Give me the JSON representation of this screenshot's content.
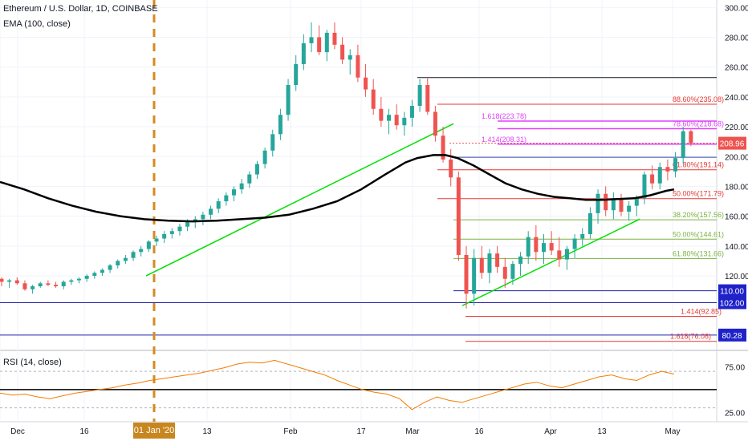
{
  "header": {
    "title": "Ethereum / U.S. Dollar, 1D, COINBASE",
    "ema_label": "EMA (100, close)",
    "rsi_label": "RSI (14, close)"
  },
  "colors": {
    "up": "#26a69a",
    "down": "#ef5350",
    "ema": "#000000",
    "trendline": "#00e000",
    "fib_red": "#e53935",
    "fib_magenta": "#e040fb",
    "fib_green": "#7cb342",
    "support_blue": "#1e22aa",
    "rsi_line": "#f57c00",
    "vertical_marker": "#d68a1f",
    "current_price_badge": "#ef5350",
    "level_badge": "#1e22c8"
  },
  "chart_data": {
    "type": "candlestick",
    "symbol": "Ethereum / U.S. Dollar",
    "interval": "1D",
    "exchange": "COINBASE",
    "ylim": [
      70,
      305
    ],
    "y_ticks": [
      120,
      140,
      160,
      180,
      200,
      220,
      240,
      260,
      280,
      300
    ],
    "x_ticks": [
      "Dec",
      "16",
      "01 Jan '20",
      "13",
      "Feb",
      "17",
      "Mar",
      "16",
      "Apr",
      "13",
      "May"
    ],
    "highlighted_x_tick": "01 Jan '20",
    "current_price": "208.96",
    "price_badges": [
      "110.00",
      "102.00",
      "80.28"
    ],
    "fib_levels": [
      {
        "label": "88.60%(235.08)",
        "price": 235.08,
        "color": "red"
      },
      {
        "label": "78.60%(218.68)",
        "price": 218.68,
        "color": "magenta"
      },
      {
        "label": "1.618(223.78)",
        "price": 223.78,
        "color": "magenta"
      },
      {
        "label": "1.414(208.31)",
        "price": 208.31,
        "color": "magenta"
      },
      {
        "label": "61.80%(191.14)",
        "price": 191.14,
        "color": "red"
      },
      {
        "label": "50.00%(171.79)",
        "price": 171.79,
        "color": "red"
      },
      {
        "label": "38.20%(157.56)",
        "price": 157.56,
        "color": "green"
      },
      {
        "label": "50.00%(144.61)",
        "price": 144.61,
        "color": "green"
      },
      {
        "label": "61.80%(131.66)",
        "price": 131.66,
        "color": "green"
      },
      {
        "label": "1.414(92.85)",
        "price": 92.85,
        "color": "red"
      },
      {
        "label": "1.618(76.08)",
        "price": 76.08,
        "color": "red"
      }
    ],
    "ema": [
      [
        0,
        183
      ],
      [
        30,
        178
      ],
      [
        60,
        172
      ],
      [
        90,
        167
      ],
      [
        120,
        163
      ],
      [
        150,
        160
      ],
      [
        180,
        158
      ],
      [
        210,
        157
      ],
      [
        240,
        156.5
      ],
      [
        270,
        157
      ],
      [
        300,
        158
      ],
      [
        330,
        159
      ],
      [
        360,
        161
      ],
      [
        390,
        165
      ],
      [
        420,
        170
      ],
      [
        450,
        178
      ],
      [
        480,
        188
      ],
      [
        505,
        196
      ],
      [
        520,
        199
      ],
      [
        540,
        201
      ],
      [
        555,
        201
      ],
      [
        570,
        199
      ],
      [
        590,
        194
      ],
      [
        610,
        188
      ],
      [
        630,
        182
      ],
      [
        650,
        178
      ],
      [
        670,
        175
      ],
      [
        690,
        173
      ],
      [
        710,
        172
      ],
      [
        730,
        171
      ],
      [
        750,
        171
      ],
      [
        770,
        171.5
      ],
      [
        790,
        172
      ],
      [
        810,
        174
      ],
      [
        830,
        177
      ],
      [
        840,
        178
      ]
    ],
    "candles": [
      [
        118,
        119,
        113,
        116
      ],
      [
        116,
        118,
        112,
        117
      ],
      [
        117,
        119,
        114,
        115
      ],
      [
        115,
        117,
        110,
        111
      ],
      [
        111,
        114,
        108,
        113
      ],
      [
        113,
        116,
        112,
        115
      ],
      [
        115,
        117,
        113,
        114
      ],
      [
        114,
        116,
        112,
        113
      ],
      [
        113,
        117,
        111,
        116
      ],
      [
        116,
        118,
        114,
        117
      ],
      [
        117,
        119,
        115,
        118
      ],
      [
        118,
        121,
        116,
        120
      ],
      [
        120,
        123,
        118,
        122
      ],
      [
        122,
        125,
        120,
        124
      ],
      [
        124,
        128,
        122,
        127
      ],
      [
        127,
        131,
        125,
        130
      ],
      [
        130,
        134,
        128,
        132
      ],
      [
        132,
        137,
        130,
        136
      ],
      [
        136,
        140,
        133,
        138
      ],
      [
        138,
        144,
        136,
        143
      ],
      [
        143,
        147,
        140,
        145
      ],
      [
        145,
        150,
        142,
        148
      ],
      [
        148,
        152,
        145,
        150
      ],
      [
        150,
        155,
        147,
        153
      ],
      [
        153,
        158,
        150,
        156
      ],
      [
        156,
        160,
        152,
        158
      ],
      [
        158,
        163,
        154,
        161
      ],
      [
        161,
        167,
        158,
        165
      ],
      [
        165,
        172,
        162,
        170
      ],
      [
        170,
        176,
        167,
        174
      ],
      [
        174,
        180,
        170,
        178
      ],
      [
        178,
        185,
        175,
        182
      ],
      [
        182,
        190,
        179,
        188
      ],
      [
        188,
        197,
        185,
        195
      ],
      [
        195,
        206,
        192,
        204
      ],
      [
        204,
        218,
        200,
        215
      ],
      [
        215,
        232,
        211,
        228
      ],
      [
        228,
        252,
        224,
        248
      ],
      [
        248,
        268,
        244,
        262
      ],
      [
        262,
        282,
        258,
        276
      ],
      [
        276,
        290,
        270,
        280
      ],
      [
        280,
        288,
        268,
        270
      ],
      [
        270,
        285,
        264,
        283
      ],
      [
        283,
        290,
        272,
        275
      ],
      [
        275,
        280,
        262,
        265
      ],
      [
        265,
        272,
        255,
        268
      ],
      [
        268,
        275,
        250,
        253
      ],
      [
        253,
        262,
        240,
        245
      ],
      [
        245,
        252,
        228,
        232
      ],
      [
        232,
        240,
        220,
        224
      ],
      [
        224,
        232,
        215,
        228
      ],
      [
        228,
        235,
        218,
        221
      ],
      [
        221,
        230,
        214,
        226
      ],
      [
        226,
        238,
        220,
        234
      ],
      [
        234,
        252,
        230,
        248
      ],
      [
        248,
        253,
        228,
        230
      ],
      [
        230,
        234,
        210,
        214
      ],
      [
        214,
        220,
        196,
        198
      ],
      [
        198,
        205,
        180,
        186
      ],
      [
        186,
        190,
        130,
        134
      ],
      [
        134,
        140,
        98,
        108
      ],
      [
        108,
        138,
        100,
        132
      ],
      [
        132,
        140,
        118,
        122
      ],
      [
        122,
        138,
        115,
        135
      ],
      [
        135,
        140,
        122,
        126
      ],
      [
        126,
        132,
        112,
        118
      ],
      [
        118,
        130,
        114,
        128
      ],
      [
        128,
        136,
        120,
        133
      ],
      [
        133,
        150,
        128,
        146
      ],
      [
        146,
        154,
        130,
        136
      ],
      [
        136,
        148,
        128,
        142
      ],
      [
        142,
        150,
        134,
        137
      ],
      [
        137,
        146,
        126,
        131
      ],
      [
        131,
        140,
        124,
        138
      ],
      [
        138,
        148,
        132,
        145
      ],
      [
        145,
        152,
        140,
        148
      ],
      [
        148,
        166,
        145,
        162
      ],
      [
        162,
        178,
        155,
        175
      ],
      [
        175,
        180,
        160,
        164
      ],
      [
        164,
        176,
        158,
        172
      ],
      [
        172,
        175,
        160,
        163
      ],
      [
        163,
        170,
        157,
        167
      ],
      [
        167,
        174,
        160,
        172
      ],
      [
        172,
        190,
        168,
        188
      ],
      [
        188,
        194,
        178,
        182
      ],
      [
        182,
        196,
        178,
        193
      ],
      [
        193,
        198,
        184,
        190
      ],
      [
        190,
        203,
        186,
        199
      ],
      [
        199,
        220,
        195,
        217
      ],
      [
        217,
        218,
        207,
        209
      ]
    ],
    "rsi": {
      "levels": [
        70,
        50,
        30
      ],
      "y_ticks": [
        "75.00",
        "25.00"
      ],
      "values": [
        46,
        44,
        45,
        42,
        40,
        43,
        46,
        48,
        50,
        52,
        55,
        57,
        60,
        62,
        64,
        66,
        68,
        71,
        74,
        78,
        80,
        79,
        82,
        78,
        74,
        70,
        66,
        60,
        55,
        50,
        47,
        45,
        40,
        28,
        36,
        42,
        38,
        36,
        40,
        44,
        48,
        52,
        56,
        58,
        54,
        52,
        56,
        60,
        64,
        66,
        62,
        60,
        66,
        70,
        67
      ]
    }
  }
}
